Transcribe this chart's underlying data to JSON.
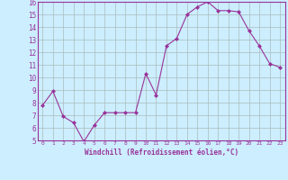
{
  "x": [
    0,
    1,
    2,
    3,
    4,
    5,
    6,
    7,
    8,
    9,
    10,
    11,
    12,
    13,
    14,
    15,
    16,
    17,
    18,
    19,
    20,
    21,
    22,
    23
  ],
  "y": [
    7.8,
    8.9,
    6.9,
    6.4,
    4.9,
    6.2,
    7.2,
    7.2,
    7.2,
    7.2,
    10.3,
    8.6,
    12.5,
    13.1,
    15.0,
    15.6,
    16.0,
    15.3,
    15.3,
    15.2,
    13.7,
    12.5,
    11.1,
    10.8
  ],
  "line_color": "#993399",
  "marker": "D",
  "marker_size": 2,
  "background_color": "#cceeff",
  "grid_color": "#aabbbb",
  "xlabel": "Windchill (Refroidissement éolien,°C)",
  "ylim": [
    5,
    16
  ],
  "xlim": [
    -0.5,
    23.5
  ],
  "yticks": [
    5,
    6,
    7,
    8,
    9,
    10,
    11,
    12,
    13,
    14,
    15,
    16
  ],
  "xticks": [
    0,
    1,
    2,
    3,
    4,
    5,
    6,
    7,
    8,
    9,
    10,
    11,
    12,
    13,
    14,
    15,
    16,
    17,
    18,
    19,
    20,
    21,
    22,
    23
  ],
  "tick_color": "#993399",
  "label_color": "#993399",
  "spine_color": "#993399"
}
